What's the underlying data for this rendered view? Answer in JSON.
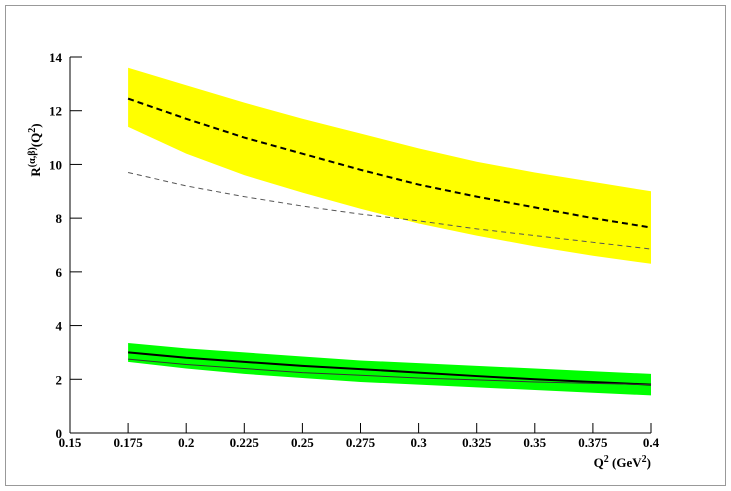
{
  "chart_data": {
    "type": "line",
    "x_label_parts": [
      {
        "text": "Q"
      },
      {
        "text": "2",
        "sup": true
      },
      {
        "text": " (GeV"
      },
      {
        "text": "2",
        "sup": true
      },
      {
        "text": ")"
      }
    ],
    "y_label_parts": [
      {
        "text": "R"
      },
      {
        "text": "(α,β)",
        "sup": true
      },
      {
        "text": "(Q"
      },
      {
        "text": "2",
        "sup": true
      },
      {
        "text": ")"
      }
    ],
    "x": [
      0.175,
      0.2,
      0.225,
      0.25,
      0.275,
      0.3,
      0.325,
      0.35,
      0.375,
      0.4
    ],
    "series": [
      {
        "color": "#000000",
        "band_color": "#ffff00",
        "line_style": "dashed",
        "width": 2,
        "values": [
          12.45,
          11.7,
          11.0,
          10.4,
          9.8,
          9.25,
          8.8,
          8.4,
          8.0,
          7.65
        ],
        "upper": [
          13.6,
          12.95,
          12.3,
          11.7,
          11.15,
          10.6,
          10.1,
          9.7,
          9.35,
          9.0
        ],
        "lower": [
          11.4,
          10.4,
          9.6,
          8.95,
          8.35,
          7.8,
          7.35,
          6.95,
          6.6,
          6.3
        ]
      },
      {
        "color": "#555555",
        "line_style": "dashed",
        "width": 1,
        "values": [
          9.7,
          9.2,
          8.8,
          8.45,
          8.15,
          7.9,
          7.6,
          7.35,
          7.1,
          6.85
        ]
      },
      {
        "color": "#000000",
        "band_color": "#00ff00",
        "line_style": "solid",
        "width": 2,
        "values": [
          3.0,
          2.8,
          2.65,
          2.5,
          2.38,
          2.25,
          2.12,
          2.0,
          1.9,
          1.8
        ],
        "upper": [
          3.35,
          3.15,
          3.0,
          2.85,
          2.7,
          2.6,
          2.5,
          2.4,
          2.3,
          2.2
        ],
        "lower": [
          2.65,
          2.4,
          2.2,
          2.05,
          1.9,
          1.8,
          1.7,
          1.6,
          1.5,
          1.4
        ]
      },
      {
        "color": "#333333",
        "line_style": "solid",
        "width": 1,
        "values": [
          2.75,
          2.55,
          2.4,
          2.25,
          2.15,
          2.05,
          1.98,
          1.9,
          1.85,
          1.8
        ]
      }
    ],
    "xlim": [
      0.15,
      0.4
    ],
    "ylim": [
      0,
      14
    ],
    "xticks": [
      0.15,
      0.175,
      0.2,
      0.225,
      0.25,
      0.275,
      0.3,
      0.325,
      0.35,
      0.375,
      0.4
    ],
    "yticks": [
      0,
      2,
      4,
      6,
      8,
      10,
      12,
      14
    ]
  }
}
